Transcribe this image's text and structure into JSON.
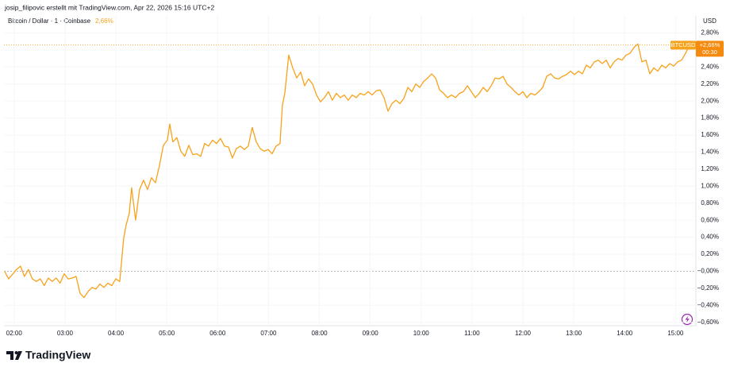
{
  "header": {
    "credit": "josip_filipovic erstellt mit TradingView.com, Apr 22, 2026 15:16 UTC+2"
  },
  "chart_data": {
    "type": "line",
    "legend_value": "2,66%",
    "currency": "USD",
    "price_label": {
      "symbol": "BTCUSD",
      "change": "+2,66%",
      "countdown": "00:30"
    },
    "xlim": [
      1.8,
      15.4
    ],
    "ylim": [
      -0.64,
      3.0
    ],
    "grid": true,
    "xticks": [
      {
        "value": 2,
        "label": "02:00"
      },
      {
        "value": 3,
        "label": "03:00"
      },
      {
        "value": 4,
        "label": "04:00"
      },
      {
        "value": 5,
        "label": "05:00"
      },
      {
        "value": 6,
        "label": "06:00"
      },
      {
        "value": 7,
        "label": "07:00"
      },
      {
        "value": 8,
        "label": "08:00"
      },
      {
        "value": 9,
        "label": "09:00"
      },
      {
        "value": 10,
        "label": "10:00"
      },
      {
        "value": 11,
        "label": "11:00"
      },
      {
        "value": 12,
        "label": "12:00"
      },
      {
        "value": 13,
        "label": "13:00"
      },
      {
        "value": 14,
        "label": "14:00"
      },
      {
        "value": 15,
        "label": "15:00"
      }
    ],
    "yticks": [
      {
        "value": 2.8,
        "label": "2,80%"
      },
      {
        "value": 2.6,
        "label": "2,60%"
      },
      {
        "value": 2.4,
        "label": "2,40%"
      },
      {
        "value": 2.2,
        "label": "2,20%"
      },
      {
        "value": 2.0,
        "label": "2,00%"
      },
      {
        "value": 1.8,
        "label": "1,80%"
      },
      {
        "value": 1.6,
        "label": "1,60%"
      },
      {
        "value": 1.4,
        "label": "1,40%"
      },
      {
        "value": 1.2,
        "label": "1,20%"
      },
      {
        "value": 1.0,
        "label": "1,00%"
      },
      {
        "value": 0.8,
        "label": "0,80%"
      },
      {
        "value": 0.6,
        "label": "0,60%"
      },
      {
        "value": 0.4,
        "label": "0,40%"
      },
      {
        "value": 0.2,
        "label": "0,20%"
      },
      {
        "value": 0,
        "label": "−0,00%"
      },
      {
        "value": -0.2,
        "label": "−0,20%"
      },
      {
        "value": -0.4,
        "label": "−0,40%"
      },
      {
        "value": -0.6,
        "label": "−0,60%"
      }
    ],
    "x": [
      1.813,
      1.891,
      2.047,
      2.125,
      2.203,
      2.281,
      2.359,
      2.437,
      2.515,
      2.593,
      2.671,
      2.749,
      2.827,
      2.905,
      2.983,
      3.061,
      3.139,
      3.217,
      3.295,
      3.373,
      3.451,
      3.529,
      3.607,
      3.685,
      3.763,
      3.841,
      3.919,
      3.997,
      4.075,
      4.153,
      4.2,
      4.262,
      4.309,
      4.387,
      4.465,
      4.543,
      4.621,
      4.699,
      4.777,
      4.855,
      4.933,
      5.011,
      5.058,
      5.12,
      5.198,
      5.276,
      5.354,
      5.432,
      5.51,
      5.588,
      5.666,
      5.744,
      5.822,
      5.9,
      5.978,
      6.056,
      6.134,
      6.212,
      6.29,
      6.368,
      6.446,
      6.524,
      6.602,
      6.68,
      6.758,
      6.836,
      6.914,
      6.992,
      7.07,
      7.148,
      7.226,
      7.273,
      7.32,
      7.398,
      7.476,
      7.554,
      7.632,
      7.71,
      7.788,
      7.866,
      7.944,
      8.022,
      8.1,
      8.178,
      8.256,
      8.334,
      8.412,
      8.49,
      8.568,
      8.646,
      8.724,
      8.802,
      8.88,
      8.958,
      9.036,
      9.114,
      9.192,
      9.27,
      9.348,
      9.426,
      9.504,
      9.582,
      9.66,
      9.738,
      9.816,
      9.894,
      9.972,
      10.05,
      10.128,
      10.206,
      10.284,
      10.362,
      10.44,
      10.518,
      10.596,
      10.674,
      10.752,
      10.83,
      10.908,
      10.986,
      11.064,
      11.142,
      11.22,
      11.298,
      11.376,
      11.454,
      11.532,
      11.61,
      11.688,
      11.766,
      11.844,
      11.922,
      12.0,
      12.078,
      12.156,
      12.234,
      12.312,
      12.39,
      12.468,
      12.546,
      12.624,
      12.702,
      12.78,
      12.858,
      12.936,
      13.014,
      13.092,
      13.17,
      13.248,
      13.326,
      13.404,
      13.482,
      13.56,
      13.638,
      13.716,
      13.794,
      13.872,
      13.95,
      14.028,
      14.106,
      14.184,
      14.262,
      14.34,
      14.418,
      14.496,
      14.574,
      14.652,
      14.73,
      14.808,
      14.886,
      14.964,
      15.042,
      15.12,
      15.198,
      15.276
    ],
    "series": [
      {
        "name": "Bitcoin / Dollar · 1 · Coinbase",
        "color": "#f7a21b",
        "values": [
          0.0,
          -0.09,
          0.02,
          0.06,
          -0.06,
          0.02,
          -0.09,
          -0.12,
          -0.09,
          -0.17,
          -0.08,
          -0.12,
          -0.08,
          -0.14,
          -0.03,
          -0.09,
          -0.08,
          -0.06,
          -0.26,
          -0.31,
          -0.24,
          -0.19,
          -0.21,
          -0.15,
          -0.19,
          -0.14,
          -0.17,
          -0.09,
          -0.12,
          0.39,
          0.54,
          0.68,
          0.98,
          0.6,
          0.96,
          1.07,
          0.96,
          1.1,
          1.04,
          1.24,
          1.48,
          1.54,
          1.73,
          1.52,
          1.57,
          1.41,
          1.35,
          1.48,
          1.37,
          1.38,
          1.35,
          1.5,
          1.47,
          1.54,
          1.5,
          1.56,
          1.47,
          1.46,
          1.33,
          1.44,
          1.47,
          1.43,
          1.47,
          1.69,
          1.52,
          1.44,
          1.41,
          1.43,
          1.38,
          1.47,
          1.5,
          1.95,
          2.09,
          2.54,
          2.39,
          2.27,
          2.34,
          2.18,
          2.26,
          2.2,
          2.07,
          1.99,
          2.04,
          2.11,
          2.01,
          2.09,
          2.04,
          2.07,
          2.01,
          2.07,
          2.04,
          2.09,
          2.07,
          2.11,
          2.07,
          2.12,
          2.13,
          2.04,
          1.88,
          1.97,
          2.01,
          1.97,
          2.03,
          2.16,
          2.11,
          2.2,
          2.16,
          2.23,
          2.27,
          2.32,
          2.27,
          2.13,
          2.09,
          2.04,
          2.07,
          2.04,
          2.09,
          2.11,
          2.18,
          2.11,
          2.04,
          2.09,
          2.16,
          2.11,
          2.18,
          2.27,
          2.26,
          2.29,
          2.2,
          2.16,
          2.11,
          2.07,
          2.11,
          2.04,
          2.09,
          2.07,
          2.11,
          2.16,
          2.29,
          2.32,
          2.27,
          2.26,
          2.29,
          2.31,
          2.35,
          2.31,
          2.35,
          2.32,
          2.42,
          2.39,
          2.46,
          2.48,
          2.44,
          2.48,
          2.39,
          2.46,
          2.5,
          2.48,
          2.54,
          2.56,
          2.63,
          2.67,
          2.46,
          2.48,
          2.32,
          2.39,
          2.35,
          2.42,
          2.39,
          2.44,
          2.41,
          2.46,
          2.48,
          2.56,
          2.66
        ]
      }
    ]
  },
  "branding": {
    "logo_text": "TradingView"
  }
}
